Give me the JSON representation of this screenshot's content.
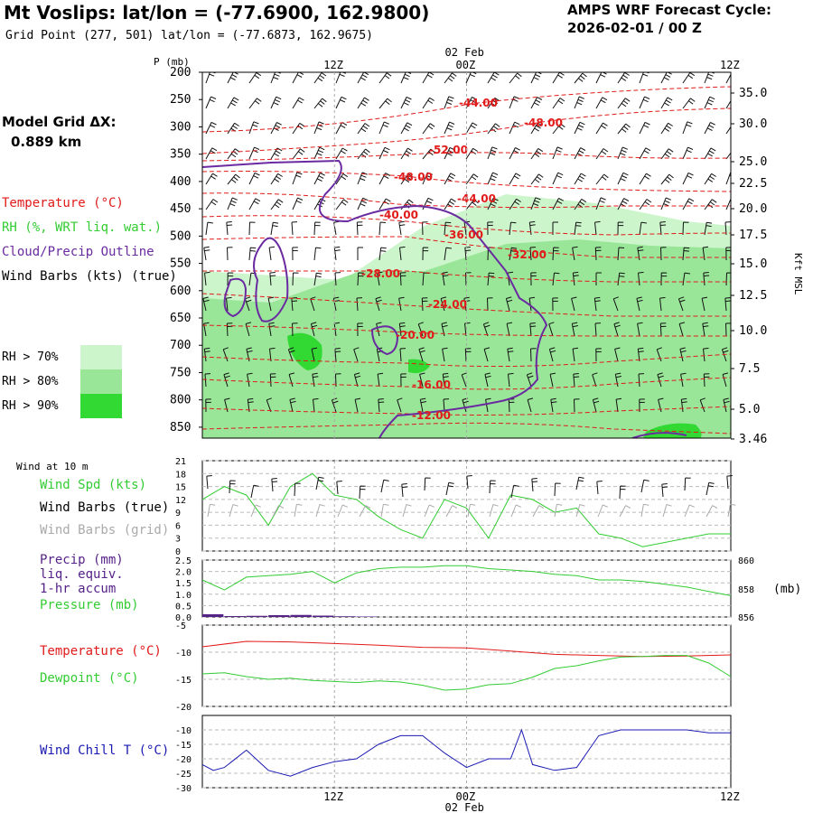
{
  "header": {
    "title": "Mt Voslips:  lat/lon = (-77.6900, 162.9800)",
    "subtitle": "Grid Point (277, 501) lat/lon = (-77.6873, 162.9675)",
    "cycle_label": "AMPS WRF Forecast Cycle:",
    "cycle_value": "2026-02-01 / 00  Z"
  },
  "model_grid": {
    "label": "Model Grid ΔX:",
    "value": "0.889 km"
  },
  "legend": {
    "temperature": "Temperature (°C)",
    "rh": "RH (%, WRT liq. wat.)",
    "cloud": "Cloud/Precip Outline",
    "wind_barbs": "Wind Barbs (kts) (true)",
    "rh70": "RH > 70%",
    "rh80": "RH > 80%",
    "rh90": "RH > 90%"
  },
  "colors": {
    "temperature": "#e11a1a",
    "rh70": "#ccf5cc",
    "rh80": "#99e699",
    "rh90": "#33d933",
    "cloud": "#6a2aa0",
    "wind_speed": "#33cc33",
    "wind_chill": "#1a1ab3",
    "precip": "#552288",
    "grid_barbs": "#aaaaaa",
    "barbs": "#111111"
  },
  "time_axis": {
    "ticks": [
      "12Z",
      "00Z",
      "12Z"
    ],
    "date_label": "02 Feb"
  },
  "chart_data": [
    {
      "type": "area",
      "title": "Mt Voslips:  lat/lon = (-77.6900, 162.9800)",
      "ylabel_left": "P (mb)",
      "ylabel_right": "Kft MSL",
      "pressure_ticks": [
        "200",
        "250",
        "300",
        "350",
        "400",
        "450",
        "500",
        "550",
        "600",
        "650",
        "700",
        "750",
        "800",
        "850"
      ],
      "height_ticks": [
        "35.0",
        "30.0",
        "25.0",
        "22.5",
        "20.0",
        "17.5",
        "15.0",
        "12.5",
        "10.0",
        "7.5",
        "5.0",
        "3.46"
      ],
      "temperature_contour_labels": [
        "-44.00",
        "-48.00",
        "-52.00",
        "-48.00",
        "-44.00",
        "-40.00",
        "-36.00",
        "-32.00",
        "-28.00",
        "-24.00",
        "-20.00",
        "-16.00",
        "-12.00"
      ],
      "ylim_mb": [
        200,
        870
      ]
    },
    {
      "type": "line",
      "panel_title": "Wind at 10 m",
      "labels": [
        "Wind Spd (kts)",
        "Wind Barbs (true)",
        "Wind Barbs (grid)"
      ],
      "yticks": [
        "21",
        "18",
        "15",
        "12",
        "9",
        "6",
        "3",
        "0"
      ],
      "ylim": [
        0,
        21
      ],
      "series": [
        {
          "name": "Wind Spd (kts)",
          "x": [
            0,
            2,
            4,
            6,
            8,
            10,
            12,
            14,
            16,
            18,
            20,
            22,
            24,
            26,
            28,
            30,
            32,
            34,
            36,
            38,
            40,
            42,
            44,
            46,
            48
          ],
          "values": [
            12,
            15,
            13,
            6,
            15,
            18,
            13,
            12,
            8,
            5,
            3,
            12,
            10,
            3,
            13,
            12,
            9,
            10,
            4,
            3,
            1,
            2,
            3,
            4,
            4
          ]
        }
      ]
    },
    {
      "type": "line",
      "labels": [
        "Precip (mm)",
        "liq. equiv.",
        "1-hr accum",
        "Pressure (mb)"
      ],
      "yticks": [
        "2.5",
        "2.0",
        "1.5",
        "1.0",
        "0.5",
        "0.0"
      ],
      "yticks_right": [
        "860",
        "858",
        "856"
      ],
      "unit_right": "(mb)",
      "ylim": [
        0,
        2.5
      ],
      "ylim_right": [
        856,
        860
      ],
      "series": [
        {
          "name": "Pressure (mb)",
          "x": [
            0,
            2,
            4,
            6,
            8,
            10,
            12,
            14,
            16,
            18,
            20,
            22,
            24,
            26,
            28,
            30,
            32,
            34,
            36,
            38,
            40,
            42,
            44,
            46,
            48
          ],
          "values": [
            858.6,
            857.9,
            858.8,
            858.9,
            859.0,
            859.2,
            858.4,
            859.1,
            859.4,
            859.5,
            859.5,
            859.6,
            859.6,
            859.4,
            859.3,
            859.2,
            859.0,
            858.9,
            858.6,
            858.6,
            858.5,
            858.3,
            858.1,
            857.8,
            857.5
          ]
        },
        {
          "name": "Precip (mm)",
          "x": [
            0,
            2,
            4,
            6,
            8,
            10,
            12,
            14,
            16
          ],
          "values": [
            0.12,
            0.04,
            0.05,
            0.08,
            0.09,
            0.06,
            0.03,
            0.02,
            0.0
          ]
        }
      ]
    },
    {
      "type": "line",
      "labels": [
        "Temperature (°C)",
        "Dewpoint (°C)"
      ],
      "yticks": [
        "-5",
        "-10",
        "-15",
        "-20"
      ],
      "ylim": [
        -20,
        -5
      ],
      "series": [
        {
          "name": "Temperature (°C)",
          "x": [
            0,
            4,
            8,
            12,
            16,
            20,
            24,
            28,
            32,
            36,
            40,
            44,
            48
          ],
          "values": [
            -9.0,
            -8.0,
            -8.1,
            -8.4,
            -8.7,
            -9.1,
            -9.2,
            -9.8,
            -10.4,
            -10.6,
            -10.8,
            -10.7,
            -10.5
          ]
        },
        {
          "name": "Dewpoint (°C)",
          "x": [
            0,
            2,
            4,
            6,
            8,
            10,
            12,
            14,
            16,
            18,
            20,
            22,
            24,
            26,
            28,
            30,
            32,
            34,
            36,
            38,
            40,
            42,
            44,
            46,
            48
          ],
          "values": [
            -14.0,
            -13.8,
            -14.5,
            -15.0,
            -14.8,
            -15.2,
            -15.4,
            -15.6,
            -15.3,
            -15.5,
            -16.1,
            -17.0,
            -16.8,
            -16.0,
            -15.8,
            -14.6,
            -13.0,
            -12.5,
            -11.6,
            -10.9,
            -10.8,
            -10.6,
            -10.6,
            -12.0,
            -14.5
          ]
        }
      ]
    },
    {
      "type": "line",
      "labels": [
        "Wind Chill T (°C)"
      ],
      "yticks": [
        "-10",
        "-15",
        "-20",
        "-25",
        "-30"
      ],
      "ylim": [
        -30,
        -5
      ],
      "series": [
        {
          "name": "Wind Chill T (°C)",
          "x": [
            0,
            1,
            2,
            4,
            6,
            8,
            10,
            12,
            14,
            16,
            18,
            20,
            22,
            24,
            26,
            28,
            29,
            30,
            32,
            34,
            36,
            38,
            40,
            42,
            44,
            46,
            48
          ],
          "values": [
            -22,
            -24,
            -23,
            -17,
            -24,
            -26,
            -23,
            -21,
            -20,
            -15,
            -12,
            -12,
            -18,
            -23,
            -20,
            -20,
            -10,
            -22,
            -24,
            -23,
            -12,
            -10,
            -10,
            -10,
            -10,
            -11,
            -11
          ]
        }
      ]
    }
  ]
}
